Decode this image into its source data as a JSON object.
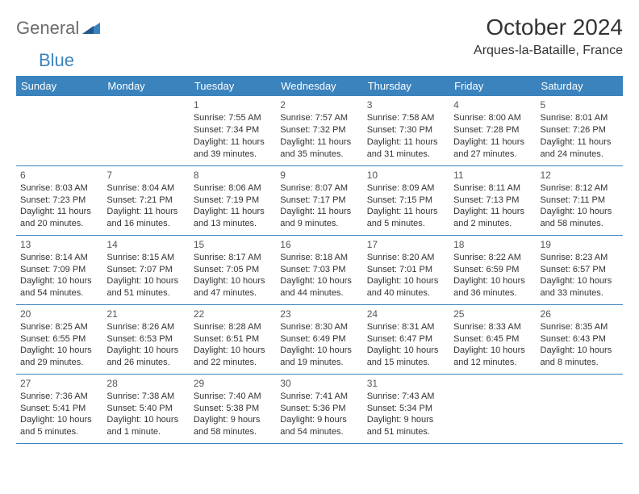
{
  "logo": {
    "part1": "General",
    "part2": "Blue"
  },
  "title": "October 2024",
  "location": "Arques-la-Bataille, France",
  "colors": {
    "header_bg": "#3b83bd",
    "header_text": "#ffffff",
    "border": "#3b83bd",
    "text": "#333333",
    "logo_gray": "#6b6b6b",
    "logo_blue": "#3b83bd",
    "background": "#ffffff"
  },
  "day_headers": [
    "Sunday",
    "Monday",
    "Tuesday",
    "Wednesday",
    "Thursday",
    "Friday",
    "Saturday"
  ],
  "weeks": [
    [
      null,
      null,
      {
        "n": "1",
        "sr": "Sunrise: 7:55 AM",
        "ss": "Sunset: 7:34 PM",
        "dl": "Daylight: 11 hours and 39 minutes."
      },
      {
        "n": "2",
        "sr": "Sunrise: 7:57 AM",
        "ss": "Sunset: 7:32 PM",
        "dl": "Daylight: 11 hours and 35 minutes."
      },
      {
        "n": "3",
        "sr": "Sunrise: 7:58 AM",
        "ss": "Sunset: 7:30 PM",
        "dl": "Daylight: 11 hours and 31 minutes."
      },
      {
        "n": "4",
        "sr": "Sunrise: 8:00 AM",
        "ss": "Sunset: 7:28 PM",
        "dl": "Daylight: 11 hours and 27 minutes."
      },
      {
        "n": "5",
        "sr": "Sunrise: 8:01 AM",
        "ss": "Sunset: 7:26 PM",
        "dl": "Daylight: 11 hours and 24 minutes."
      }
    ],
    [
      {
        "n": "6",
        "sr": "Sunrise: 8:03 AM",
        "ss": "Sunset: 7:23 PM",
        "dl": "Daylight: 11 hours and 20 minutes."
      },
      {
        "n": "7",
        "sr": "Sunrise: 8:04 AM",
        "ss": "Sunset: 7:21 PM",
        "dl": "Daylight: 11 hours and 16 minutes."
      },
      {
        "n": "8",
        "sr": "Sunrise: 8:06 AM",
        "ss": "Sunset: 7:19 PM",
        "dl": "Daylight: 11 hours and 13 minutes."
      },
      {
        "n": "9",
        "sr": "Sunrise: 8:07 AM",
        "ss": "Sunset: 7:17 PM",
        "dl": "Daylight: 11 hours and 9 minutes."
      },
      {
        "n": "10",
        "sr": "Sunrise: 8:09 AM",
        "ss": "Sunset: 7:15 PM",
        "dl": "Daylight: 11 hours and 5 minutes."
      },
      {
        "n": "11",
        "sr": "Sunrise: 8:11 AM",
        "ss": "Sunset: 7:13 PM",
        "dl": "Daylight: 11 hours and 2 minutes."
      },
      {
        "n": "12",
        "sr": "Sunrise: 8:12 AM",
        "ss": "Sunset: 7:11 PM",
        "dl": "Daylight: 10 hours and 58 minutes."
      }
    ],
    [
      {
        "n": "13",
        "sr": "Sunrise: 8:14 AM",
        "ss": "Sunset: 7:09 PM",
        "dl": "Daylight: 10 hours and 54 minutes."
      },
      {
        "n": "14",
        "sr": "Sunrise: 8:15 AM",
        "ss": "Sunset: 7:07 PM",
        "dl": "Daylight: 10 hours and 51 minutes."
      },
      {
        "n": "15",
        "sr": "Sunrise: 8:17 AM",
        "ss": "Sunset: 7:05 PM",
        "dl": "Daylight: 10 hours and 47 minutes."
      },
      {
        "n": "16",
        "sr": "Sunrise: 8:18 AM",
        "ss": "Sunset: 7:03 PM",
        "dl": "Daylight: 10 hours and 44 minutes."
      },
      {
        "n": "17",
        "sr": "Sunrise: 8:20 AM",
        "ss": "Sunset: 7:01 PM",
        "dl": "Daylight: 10 hours and 40 minutes."
      },
      {
        "n": "18",
        "sr": "Sunrise: 8:22 AM",
        "ss": "Sunset: 6:59 PM",
        "dl": "Daylight: 10 hours and 36 minutes."
      },
      {
        "n": "19",
        "sr": "Sunrise: 8:23 AM",
        "ss": "Sunset: 6:57 PM",
        "dl": "Daylight: 10 hours and 33 minutes."
      }
    ],
    [
      {
        "n": "20",
        "sr": "Sunrise: 8:25 AM",
        "ss": "Sunset: 6:55 PM",
        "dl": "Daylight: 10 hours and 29 minutes."
      },
      {
        "n": "21",
        "sr": "Sunrise: 8:26 AM",
        "ss": "Sunset: 6:53 PM",
        "dl": "Daylight: 10 hours and 26 minutes."
      },
      {
        "n": "22",
        "sr": "Sunrise: 8:28 AM",
        "ss": "Sunset: 6:51 PM",
        "dl": "Daylight: 10 hours and 22 minutes."
      },
      {
        "n": "23",
        "sr": "Sunrise: 8:30 AM",
        "ss": "Sunset: 6:49 PM",
        "dl": "Daylight: 10 hours and 19 minutes."
      },
      {
        "n": "24",
        "sr": "Sunrise: 8:31 AM",
        "ss": "Sunset: 6:47 PM",
        "dl": "Daylight: 10 hours and 15 minutes."
      },
      {
        "n": "25",
        "sr": "Sunrise: 8:33 AM",
        "ss": "Sunset: 6:45 PM",
        "dl": "Daylight: 10 hours and 12 minutes."
      },
      {
        "n": "26",
        "sr": "Sunrise: 8:35 AM",
        "ss": "Sunset: 6:43 PM",
        "dl": "Daylight: 10 hours and 8 minutes."
      }
    ],
    [
      {
        "n": "27",
        "sr": "Sunrise: 7:36 AM",
        "ss": "Sunset: 5:41 PM",
        "dl": "Daylight: 10 hours and 5 minutes."
      },
      {
        "n": "28",
        "sr": "Sunrise: 7:38 AM",
        "ss": "Sunset: 5:40 PM",
        "dl": "Daylight: 10 hours and 1 minute."
      },
      {
        "n": "29",
        "sr": "Sunrise: 7:40 AM",
        "ss": "Sunset: 5:38 PM",
        "dl": "Daylight: 9 hours and 58 minutes."
      },
      {
        "n": "30",
        "sr": "Sunrise: 7:41 AM",
        "ss": "Sunset: 5:36 PM",
        "dl": "Daylight: 9 hours and 54 minutes."
      },
      {
        "n": "31",
        "sr": "Sunrise: 7:43 AM",
        "ss": "Sunset: 5:34 PM",
        "dl": "Daylight: 9 hours and 51 minutes."
      },
      null,
      null
    ]
  ]
}
